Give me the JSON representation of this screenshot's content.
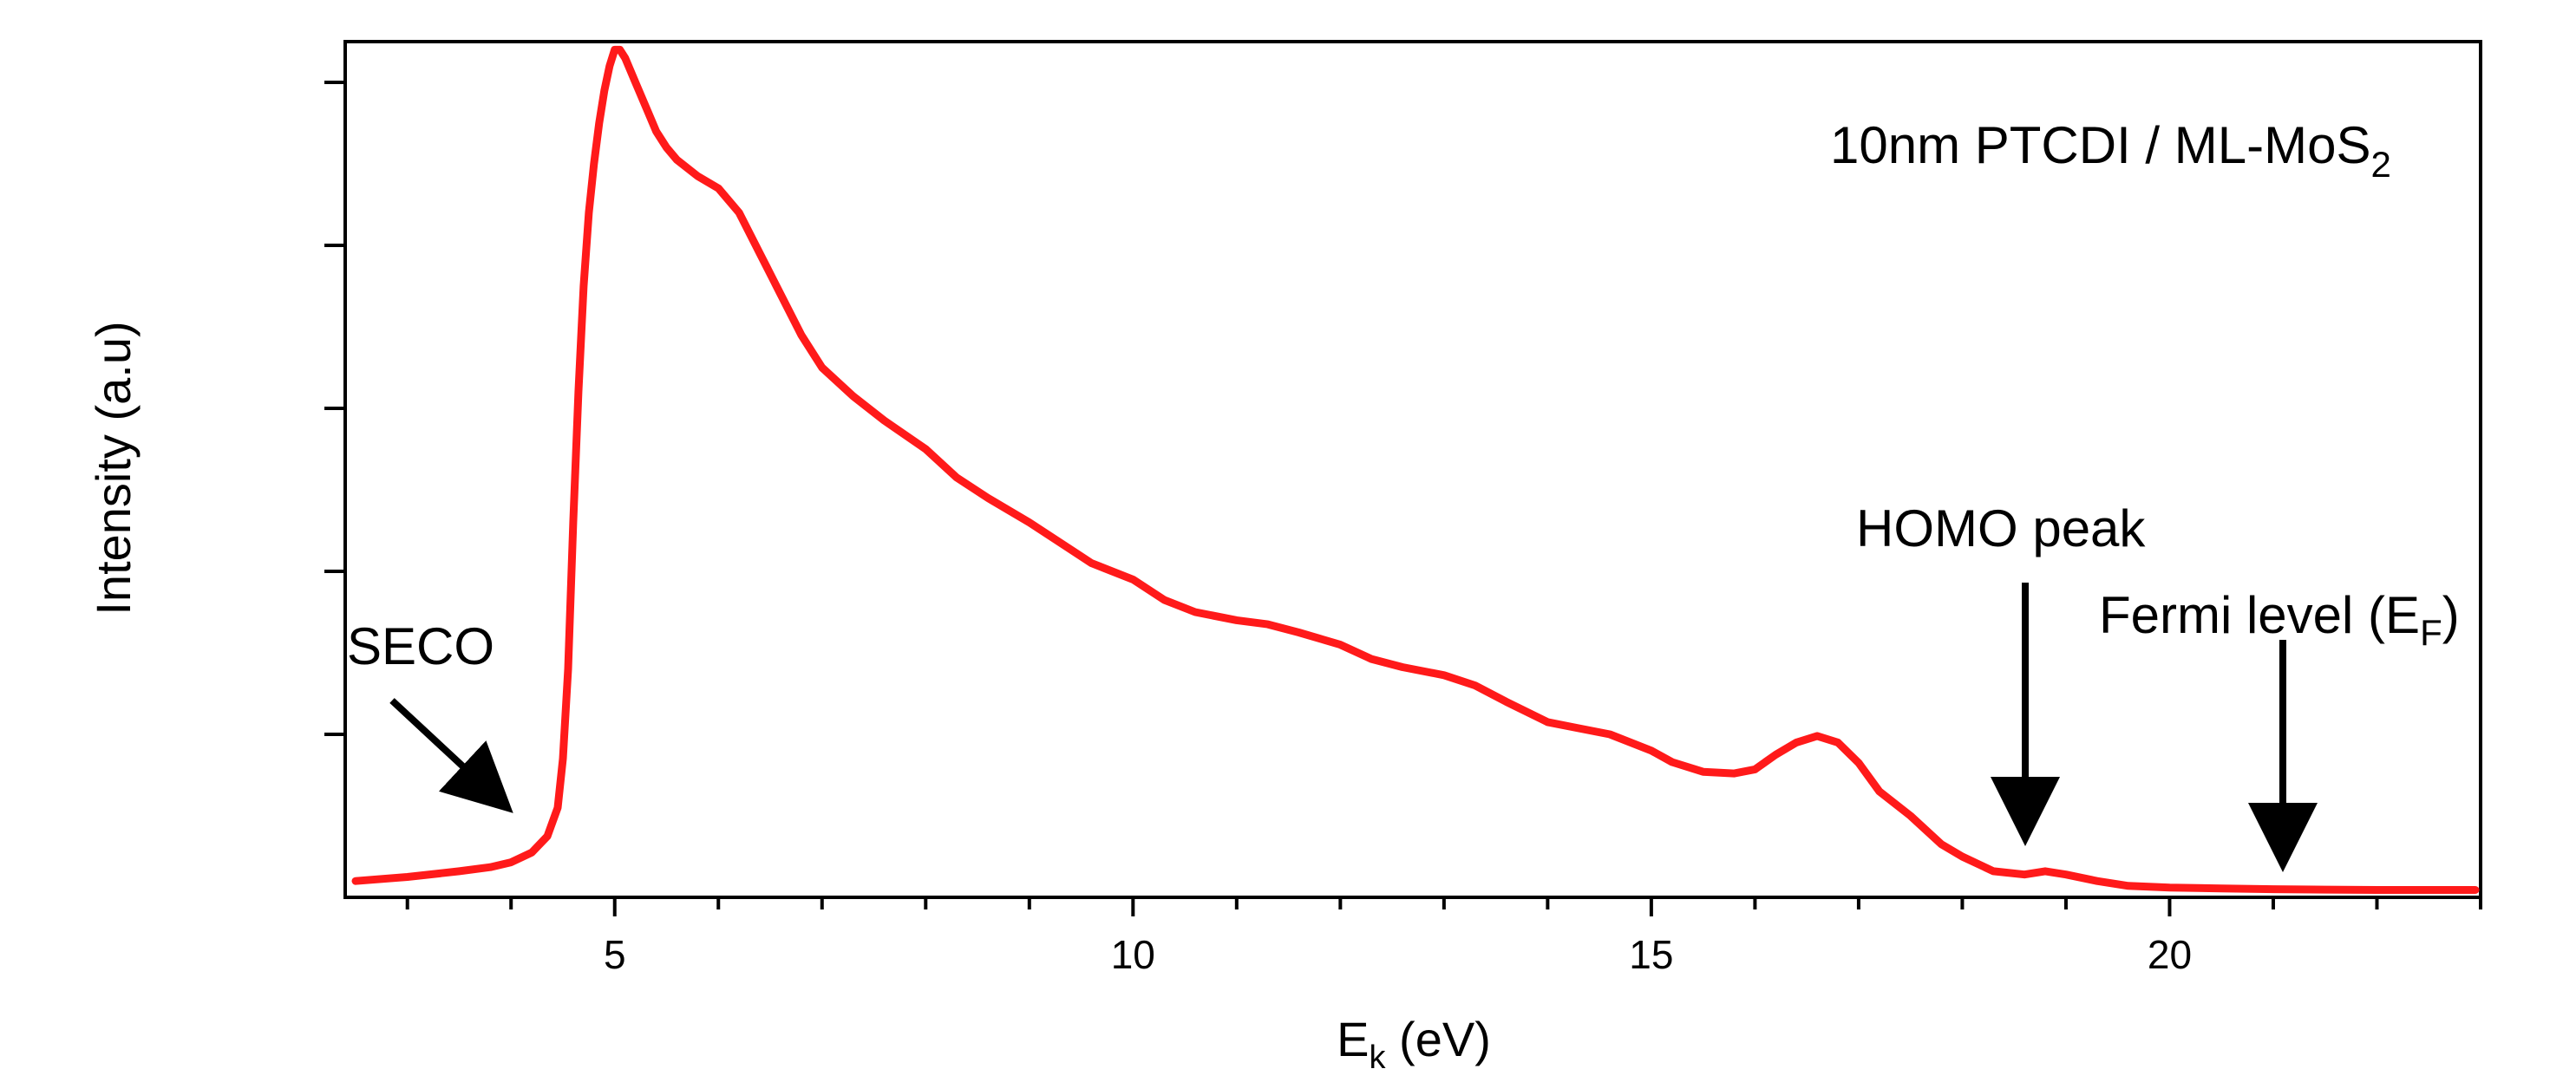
{
  "chart_data": {
    "type": "line",
    "title": "",
    "xlabel": {
      "main": "E",
      "sub": "k",
      "rest": " (eV)"
    },
    "ylabel": "Intensity (a.u)",
    "xlim": [
      2.4,
      23.0
    ],
    "ylim": [
      0,
      1.05
    ],
    "x_major_ticks": [
      5,
      10,
      15,
      20
    ],
    "x_tick_labels": [
      "5",
      "10",
      "15",
      "20"
    ],
    "x_minor_step": 1,
    "y_tick_values": [
      0.2,
      0.4,
      0.6,
      0.8,
      1.0
    ],
    "y_tick_labels_shown": false,
    "grid": false,
    "line_color": "#ff1a1a",
    "series": [
      {
        "x": [
          2.5,
          3.0,
          3.5,
          3.8,
          4.0,
          4.2,
          4.35,
          4.45,
          4.5,
          4.55,
          4.6,
          4.65,
          4.7,
          4.75,
          4.8,
          4.85,
          4.9,
          4.95,
          5.0,
          5.05,
          5.1,
          5.2,
          5.3,
          5.4,
          5.5,
          5.6,
          5.8,
          6.0,
          6.2,
          6.4,
          6.6,
          6.8,
          7.0,
          7.3,
          7.6,
          8.0,
          8.3,
          8.6,
          9.0,
          9.3,
          9.6,
          10.0,
          10.3,
          10.6,
          11.0,
          11.3,
          11.6,
          12.0,
          12.3,
          12.6,
          13.0,
          13.3,
          13.6,
          14.0,
          14.3,
          14.6,
          15.0,
          15.2,
          15.5,
          15.8,
          16.0,
          16.2,
          16.4,
          16.6,
          16.8,
          17.0,
          17.2,
          17.5,
          17.8,
          18.0,
          18.3,
          18.6,
          18.8,
          19.0,
          19.3,
          19.6,
          20.0,
          20.5,
          21.0,
          21.5,
          22.0,
          22.5,
          22.95
        ],
        "y": [
          0.02,
          0.025,
          0.032,
          0.037,
          0.043,
          0.055,
          0.075,
          0.11,
          0.17,
          0.28,
          0.46,
          0.62,
          0.75,
          0.84,
          0.9,
          0.95,
          0.99,
          1.02,
          1.04,
          1.04,
          1.03,
          1.0,
          0.97,
          0.94,
          0.92,
          0.905,
          0.885,
          0.87,
          0.84,
          0.79,
          0.74,
          0.69,
          0.65,
          0.615,
          0.585,
          0.55,
          0.515,
          0.49,
          0.46,
          0.435,
          0.41,
          0.39,
          0.365,
          0.35,
          0.34,
          0.335,
          0.325,
          0.31,
          0.2925,
          0.2825,
          0.2725,
          0.26,
          0.24,
          0.215,
          0.2075,
          0.2,
          0.18,
          0.166,
          0.154,
          0.152,
          0.157,
          0.175,
          0.19,
          0.198,
          0.19,
          0.165,
          0.13,
          0.1,
          0.065,
          0.05,
          0.032,
          0.028,
          0.032,
          0.028,
          0.02,
          0.014,
          0.012,
          0.011,
          0.01,
          0.0095,
          0.009,
          0.009,
          0.009
        ]
      }
    ],
    "annotations": [
      {
        "text": "SECO",
        "pointer": "diagonal-arrow"
      },
      {
        "text": "HOMO peak",
        "pointer": "down-arrow"
      },
      {
        "text_main": "Fermi level (E",
        "text_sub": "F",
        "text_end": ")",
        "pointer": "down-arrow"
      }
    ],
    "sample_label": {
      "main": "10nm PTCDI / ML-MoS",
      "sub": "2"
    }
  }
}
